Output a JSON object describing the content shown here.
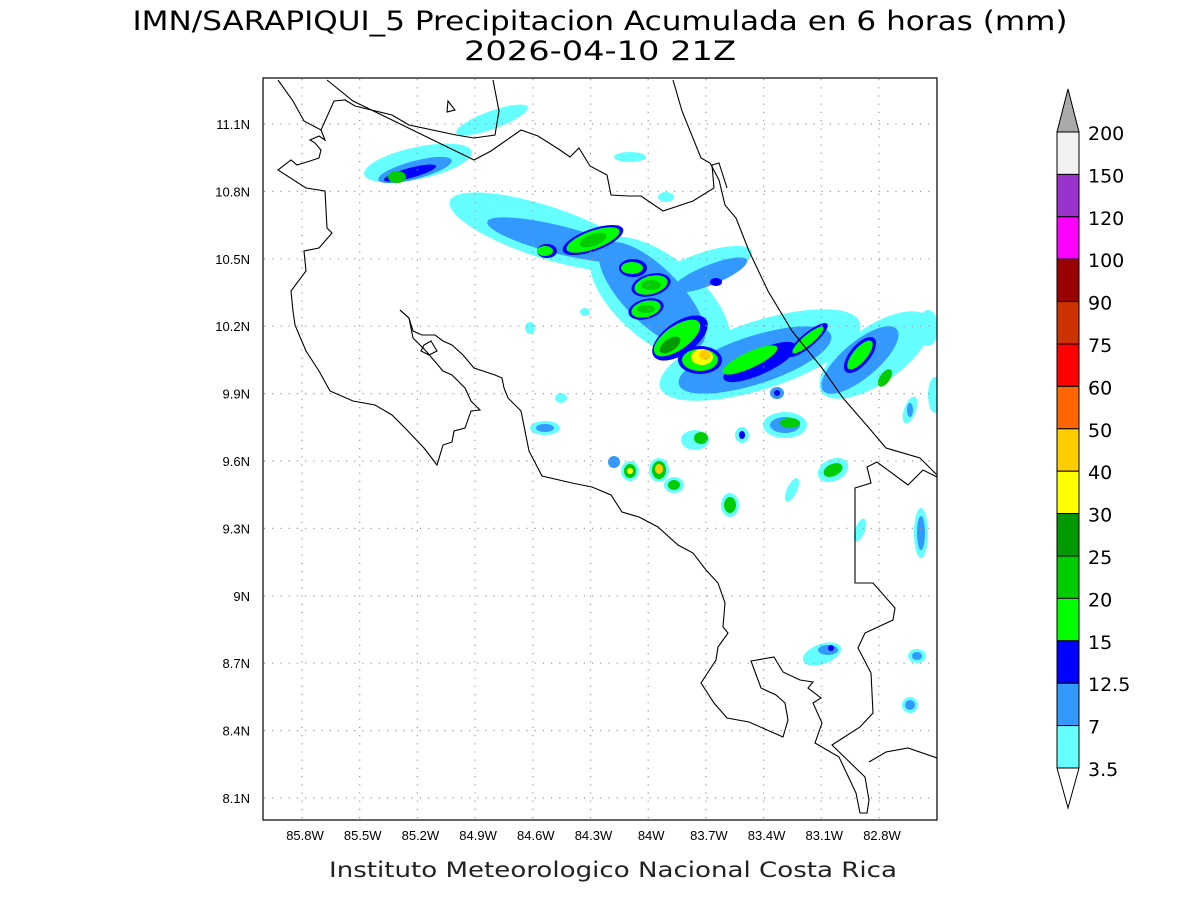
{
  "title": {
    "line1": "IMN/SARAPIQUI_5 Precipitacion Acumulada en 6 horas (mm)",
    "line2": "2026-04-10 21Z"
  },
  "footer": "Instituto Meteorologico Nacional Costa Rica",
  "map": {
    "lon_ticks": [
      "85.8W",
      "85.5W",
      "85.2W",
      "84.9W",
      "84.6W",
      "84.3W",
      "84W",
      "83.7W",
      "83.4W",
      "83.1W",
      "82.8W"
    ],
    "lat_ticks": [
      "11.1N",
      "10.8N",
      "10.5N",
      "10.2N",
      "9.9N",
      "9.6N",
      "9.3N",
      "9N",
      "8.7N",
      "8.4N",
      "8.1N"
    ],
    "grid": "dotted",
    "region": "Costa Rica"
  },
  "colorbar": {
    "labels": [
      "200",
      "150",
      "120",
      "100",
      "90",
      "75",
      "60",
      "50",
      "40",
      "30",
      "25",
      "20",
      "15",
      "12.5",
      "7",
      "3.5"
    ],
    "colors": [
      "#f2f2f2",
      "#9933cc",
      "#ff00ff",
      "#990000",
      "#cc3300",
      "#ff0000",
      "#ff6600",
      "#ffcc00",
      "#ffff00",
      "#009900",
      "#00cc00",
      "#00ff00",
      "#0000ff",
      "#3399ff",
      "#66ffff"
    ],
    "over_color": "#aaaaaa",
    "under_color": "#ffffff"
  }
}
